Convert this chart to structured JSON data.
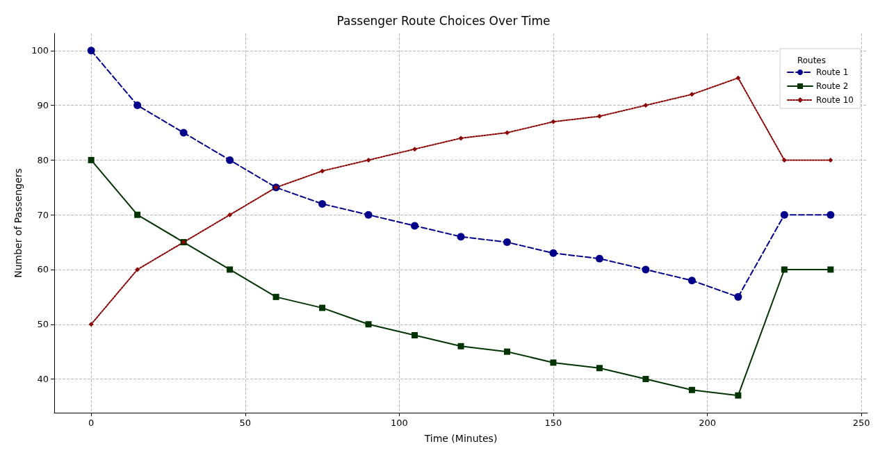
{
  "chart_data": {
    "type": "line",
    "title": "Passenger Route Choices Over Time",
    "xlabel": "Time (Minutes)",
    "ylabel": "Number of Passengers",
    "legend_title": "Routes",
    "legend": "top right",
    "grid": true,
    "x": [
      0,
      15,
      30,
      45,
      60,
      75,
      90,
      105,
      120,
      135,
      150,
      165,
      180,
      195,
      210,
      225,
      240
    ],
    "xlim": [
      -12,
      252
    ],
    "xticks": [
      0,
      50,
      100,
      150,
      200,
      250
    ],
    "ylim": [
      33.85,
      103.15
    ],
    "yticks": [
      40,
      50,
      60,
      70,
      80,
      90,
      100
    ],
    "series": [
      {
        "name": "Route 1",
        "color": "#00008b",
        "marker": "circle",
        "line_style": "dashed",
        "values": [
          100,
          90,
          85,
          80,
          75,
          72,
          70,
          68,
          66,
          65,
          63,
          62,
          60,
          58,
          55,
          70,
          70
        ]
      },
      {
        "name": "Route 2",
        "color": "#003300",
        "marker": "square",
        "line_style": "solid",
        "values": [
          80,
          70,
          65,
          60,
          55,
          53,
          50,
          48,
          46,
          45,
          43,
          42,
          40,
          38,
          37,
          60,
          60
        ]
      },
      {
        "name": "Route 10",
        "color": "#8b0000",
        "marker": "diamond",
        "line_style": "dotted",
        "values": [
          50,
          60,
          65,
          70,
          75,
          78,
          80,
          82,
          84,
          85,
          87,
          88,
          90,
          92,
          95,
          80,
          80
        ]
      }
    ]
  }
}
